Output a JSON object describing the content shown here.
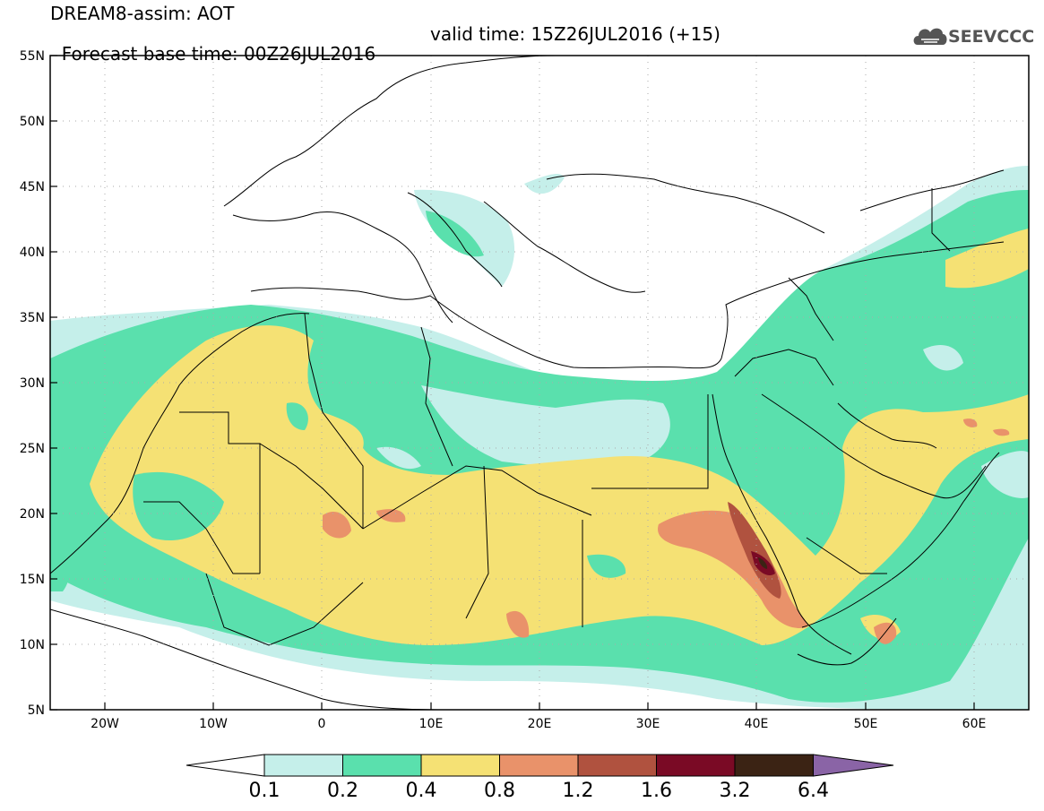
{
  "title": {
    "line1": "DREAM8-assim: AOT",
    "base": "Forecast base time: 00Z26JUL2016",
    "valid": "valid time: 15Z26JUL2016 (+15)"
  },
  "logo": {
    "text": "SEEVCCC"
  },
  "axes": {
    "lat_labels": [
      "55N",
      "50N",
      "45N",
      "40N",
      "35N",
      "30N",
      "25N",
      "20N",
      "15N",
      "10N",
      "5N"
    ],
    "lon_labels": [
      "20W",
      "10W",
      "0",
      "10E",
      "20E",
      "30E",
      "40E",
      "50E",
      "60E"
    ]
  },
  "colorbar": {
    "colors": [
      "#c5efea",
      "#5ae0ad",
      "#f5e174",
      "#e9926a",
      "#b0523f",
      "#7a0a25",
      "#3b2314",
      "#8a64a6"
    ],
    "ticks": [
      "0.1",
      "0.2",
      "0.4",
      "0.8",
      "1.2",
      "1.6",
      "3.2",
      "6.4"
    ]
  }
}
